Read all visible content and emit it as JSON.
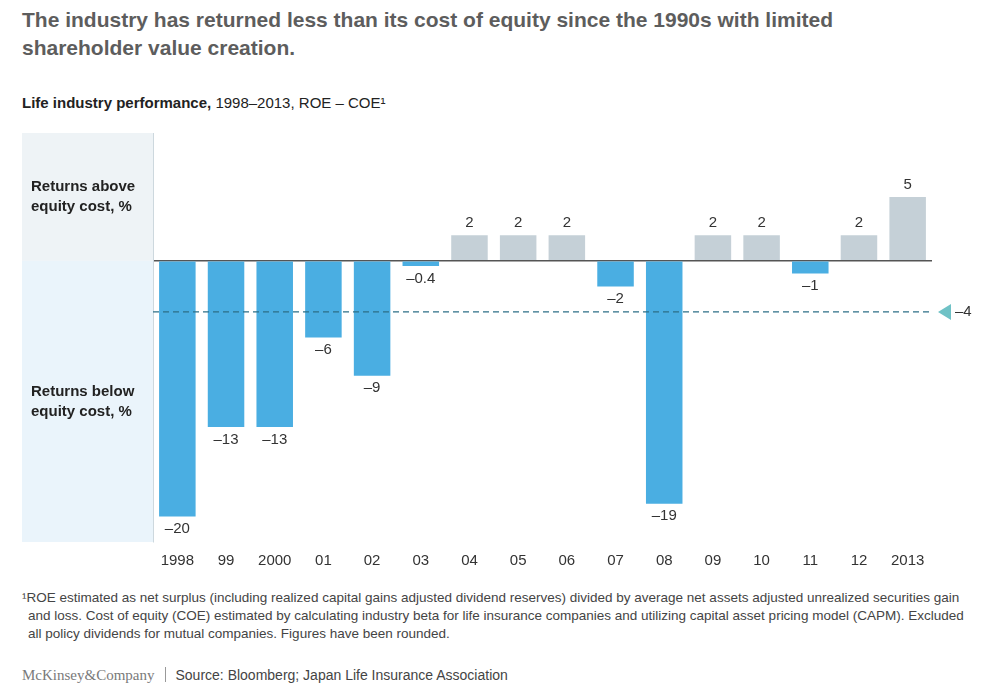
{
  "chart_data": {
    "type": "bar",
    "title": "The industry has returned less than its cost of equity since the 1990s with limited shareholder value creation.",
    "subtitle": "Life industry performance, 1998–2013, ROE – COE¹",
    "categories": [
      "1998",
      "99",
      "2000",
      "01",
      "02",
      "03",
      "04",
      "05",
      "06",
      "07",
      "08",
      "09",
      "10",
      "11",
      "12",
      "2013"
    ],
    "values": [
      -20,
      -13,
      -13,
      -6,
      -9,
      -0.4,
      2,
      2,
      2,
      -2,
      -19,
      2,
      2,
      -1,
      2,
      5
    ],
    "value_labels": [
      "–20",
      "–13",
      "–13",
      "–6",
      "–9",
      "–0.4",
      "2",
      "2",
      "2",
      "–2",
      "–19",
      "2",
      "2",
      "–1",
      "2",
      "5"
    ],
    "colors": [
      "#4aaee2",
      "#4aaee2",
      "#4aaee2",
      "#4aaee2",
      "#4aaee2",
      "#4aaee2",
      "#c5d0d7",
      "#c5d0d7",
      "#c5d0d7",
      "#4aaee2",
      "#4aaee2",
      "#c5d0d7",
      "#c5d0d7",
      "#4aaee2",
      "#c5d0d7",
      "#c5d0d7"
    ],
    "ylim": [
      -22,
      10
    ],
    "yticks": [
      0
    ],
    "grid": true,
    "tick_labels": "x",
    "data_labels": true,
    "annotations": [
      {
        "text": "Returns above equity cost, %",
        "side": "above"
      },
      {
        "text": "Returns below equity cost, %",
        "side": "below"
      }
    ],
    "reference_line": {
      "value": -4,
      "label": "–4",
      "line_style": "dashed",
      "color": "#2d6f86"
    },
    "footnote": "¹ROE estimated as net surplus (including realized capital gains adjusted dividend reserves) divided by average net assets adjusted unrealized securities gain and loss. Cost of equity (COE) estimated by calculating industry beta for life insurance companies and utilizing capital asset pricing model (CAPM). Excluded all policy dividends for mutual companies. Figures have been rounded.",
    "logo": "McKinsey&Company",
    "source": "Source: Bloomberg; Japan Life Insurance Association"
  }
}
